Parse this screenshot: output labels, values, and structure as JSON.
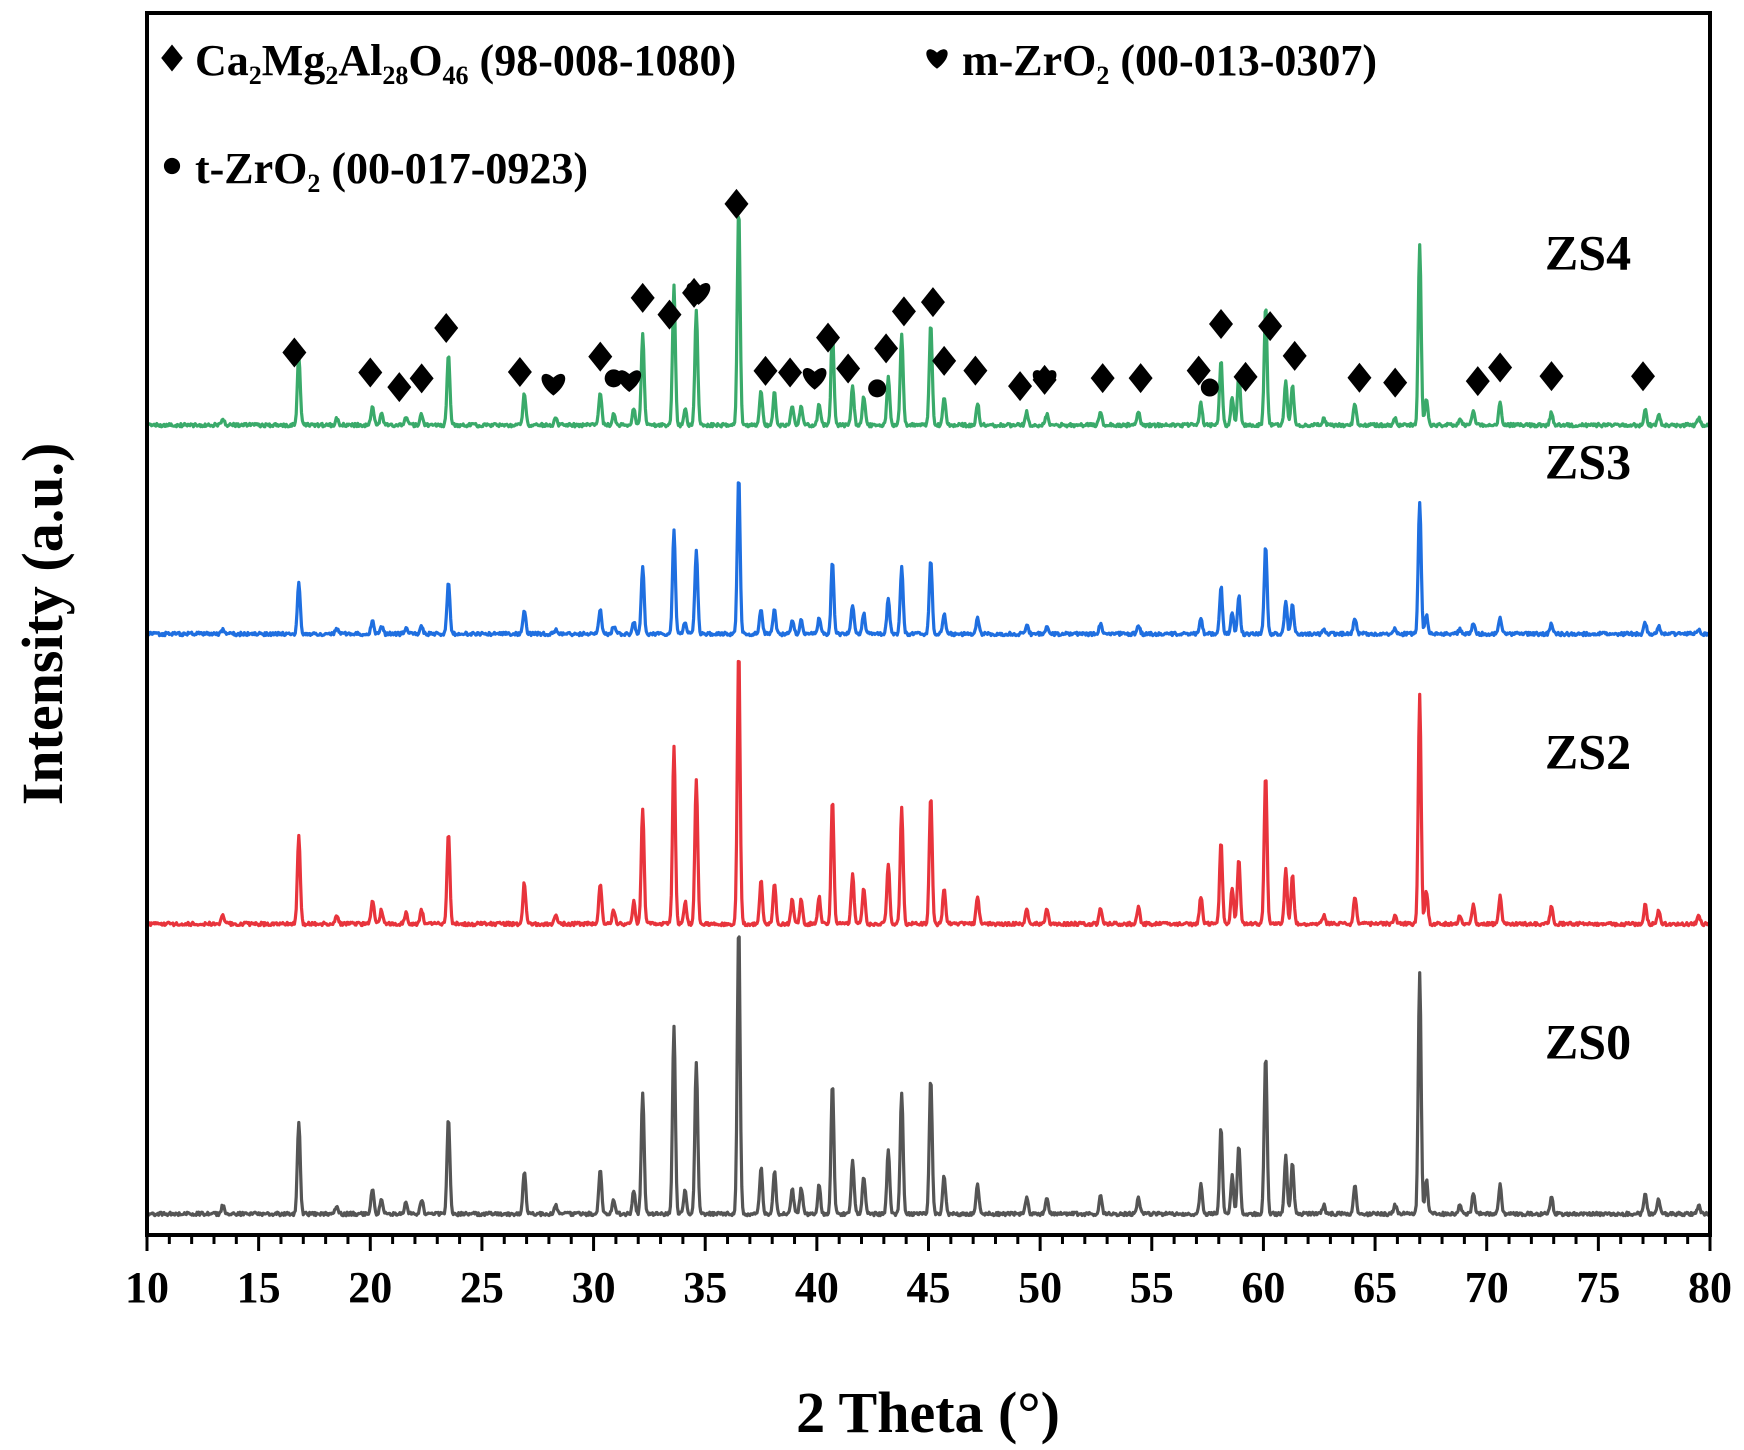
{
  "chart_data": {
    "type": "line",
    "xlabel": "2 Theta (°)",
    "ylabel": "Intensity (a.u.)",
    "xlim": [
      10,
      80
    ],
    "x_ticks": [
      10,
      15,
      20,
      25,
      30,
      35,
      40,
      45,
      50,
      55,
      60,
      65,
      70,
      75,
      80
    ],
    "grid": false,
    "y_tick_labels": false,
    "legend": {
      "placement": "top-left",
      "entries": [
        {
          "marker": "diamond",
          "name_html": "Ca<tspan font-size='26' dy='9'>2</tspan><tspan dy='-9'>Mg</tspan><tspan font-size='26' dy='9'>2</tspan><tspan dy='-9'>Al</tspan><tspan font-size='26' dy='9'>28</tspan><tspan dy='-9'>O</tspan><tspan font-size='26' dy='9'>46</tspan><tspan dy='-9'> (98-008-1080)</tspan>"
        },
        {
          "marker": "heart",
          "name_html": "m-ZrO<tspan font-size='26' dy='9'>2</tspan><tspan dy='-9'> (00-013-0307)</tspan>"
        },
        {
          "marker": "circle",
          "name_html": "t-ZrO<tspan font-size='26' dy='9'>2</tspan><tspan dy='-9'> (00-017-0923)</tspan>"
        }
      ]
    },
    "series": [
      {
        "name": "ZS0",
        "color": "#555555",
        "offset": 0.0,
        "scale": 1.0
      },
      {
        "name": "ZS2",
        "color": "#e8343c",
        "offset": 1.0,
        "scale": 0.95
      },
      {
        "name": "ZS3",
        "color": "#1f6fe0",
        "offset": 2.0,
        "scale": 0.55
      },
      {
        "name": "ZS4",
        "color": "#3aaa6a",
        "offset": 2.72,
        "scale": 0.75
      }
    ],
    "peaks": [
      [
        13.4,
        0.03
      ],
      [
        16.8,
        0.32
      ],
      [
        18.5,
        0.03
      ],
      [
        20.1,
        0.09
      ],
      [
        20.5,
        0.05
      ],
      [
        21.6,
        0.04
      ],
      [
        22.3,
        0.05
      ],
      [
        23.5,
        0.33
      ],
      [
        26.9,
        0.15
      ],
      [
        28.3,
        0.03
      ],
      [
        30.3,
        0.15
      ],
      [
        30.9,
        0.05
      ],
      [
        31.8,
        0.08
      ],
      [
        32.2,
        0.42
      ],
      [
        33.6,
        0.65
      ],
      [
        34.1,
        0.08
      ],
      [
        34.6,
        0.52
      ],
      [
        36.5,
        1.0
      ],
      [
        37.5,
        0.16
      ],
      [
        38.1,
        0.15
      ],
      [
        38.9,
        0.09
      ],
      [
        39.3,
        0.09
      ],
      [
        40.1,
        0.1
      ],
      [
        40.7,
        0.45
      ],
      [
        41.6,
        0.18
      ],
      [
        42.1,
        0.13
      ],
      [
        43.2,
        0.22
      ],
      [
        43.8,
        0.42
      ],
      [
        45.1,
        0.47
      ],
      [
        45.7,
        0.13
      ],
      [
        47.2,
        0.1
      ],
      [
        49.4,
        0.06
      ],
      [
        50.3,
        0.05
      ],
      [
        52.7,
        0.06
      ],
      [
        54.4,
        0.06
      ],
      [
        57.2,
        0.1
      ],
      [
        58.1,
        0.3
      ],
      [
        58.6,
        0.13
      ],
      [
        58.9,
        0.24
      ],
      [
        60.1,
        0.55
      ],
      [
        61.0,
        0.2
      ],
      [
        61.3,
        0.18
      ],
      [
        62.7,
        0.03
      ],
      [
        64.1,
        0.1
      ],
      [
        65.9,
        0.03
      ],
      [
        67.0,
        0.83
      ],
      [
        67.3,
        0.12
      ],
      [
        68.8,
        0.03
      ],
      [
        69.4,
        0.07
      ],
      [
        70.6,
        0.1
      ],
      [
        72.9,
        0.06
      ],
      [
        77.1,
        0.07
      ],
      [
        77.7,
        0.05
      ],
      [
        79.5,
        0.03
      ]
    ],
    "markers": [
      {
        "type": "diamond",
        "x": 16.6
      },
      {
        "type": "diamond",
        "x": 20.0
      },
      {
        "type": "diamond",
        "x": 21.3
      },
      {
        "type": "diamond",
        "x": 22.3
      },
      {
        "type": "diamond",
        "x": 23.4
      },
      {
        "type": "diamond",
        "x": 26.7
      },
      {
        "type": "heart",
        "x": 28.2
      },
      {
        "type": "diamond",
        "x": 30.3
      },
      {
        "type": "circle",
        "x": 30.9
      },
      {
        "type": "heart",
        "x": 31.6
      },
      {
        "type": "diamond",
        "x": 32.2
      },
      {
        "type": "diamond",
        "x": 33.4
      },
      {
        "type": "heart",
        "x": 34.7
      },
      {
        "type": "diamond",
        "x": 34.5
      },
      {
        "type": "diamond",
        "x": 36.4
      },
      {
        "type": "diamond",
        "x": 37.7
      },
      {
        "type": "diamond",
        "x": 38.8
      },
      {
        "type": "heart",
        "x": 39.9
      },
      {
        "type": "diamond",
        "x": 40.5
      },
      {
        "type": "diamond",
        "x": 41.4
      },
      {
        "type": "circle",
        "x": 42.7
      },
      {
        "type": "diamond",
        "x": 43.1
      },
      {
        "type": "diamond",
        "x": 43.9
      },
      {
        "type": "diamond",
        "x": 45.2
      },
      {
        "type": "diamond",
        "x": 45.7
      },
      {
        "type": "diamond",
        "x": 47.1
      },
      {
        "type": "diamond",
        "x": 49.1
      },
      {
        "type": "heart",
        "x": 50.2
      },
      {
        "type": "diamond",
        "x": 50.2
      },
      {
        "type": "diamond",
        "x": 52.8
      },
      {
        "type": "diamond",
        "x": 54.5
      },
      {
        "type": "diamond",
        "x": 57.1
      },
      {
        "type": "circle",
        "x": 57.6
      },
      {
        "type": "diamond",
        "x": 58.1
      },
      {
        "type": "diamond",
        "x": 59.2
      },
      {
        "type": "diamond",
        "x": 60.3
      },
      {
        "type": "diamond",
        "x": 61.4
      },
      {
        "type": "diamond",
        "x": 64.3
      },
      {
        "type": "diamond",
        "x": 65.9
      },
      {
        "type": "diamond",
        "x": 69.6
      },
      {
        "type": "diamond",
        "x": 70.6
      },
      {
        "type": "diamond",
        "x": 72.9
      },
      {
        "type": "diamond",
        "x": 77.0
      }
    ]
  }
}
